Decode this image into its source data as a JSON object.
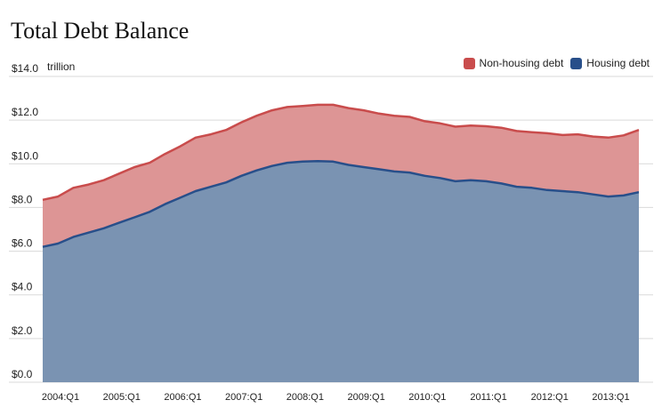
{
  "chart_data": {
    "type": "area",
    "title": "Total Debt Balance",
    "unit_label": "trillion",
    "stacked": true,
    "y_ticks": [
      "$0.0",
      "$2.0",
      "$4.0",
      "$6.0",
      "$8.0",
      "$10.0",
      "$12.0",
      "$14.0"
    ],
    "ylim": [
      0,
      14
    ],
    "x_ticks": [
      "2004:Q1",
      "2005:Q1",
      "2006:Q1",
      "2007:Q1",
      "2008:Q1",
      "2009:Q1",
      "2010:Q1",
      "2011:Q1",
      "2012:Q1",
      "2013:Q1"
    ],
    "x": [
      "2004:Q1",
      "2004:Q2",
      "2004:Q3",
      "2004:Q4",
      "2005:Q1",
      "2005:Q2",
      "2005:Q3",
      "2005:Q4",
      "2006:Q1",
      "2006:Q2",
      "2006:Q3",
      "2006:Q4",
      "2007:Q1",
      "2007:Q2",
      "2007:Q3",
      "2007:Q4",
      "2008:Q1",
      "2008:Q2",
      "2008:Q3",
      "2008:Q4",
      "2009:Q1",
      "2009:Q2",
      "2009:Q3",
      "2009:Q4",
      "2010:Q1",
      "2010:Q2",
      "2010:Q3",
      "2010:Q4",
      "2011:Q1",
      "2011:Q2",
      "2011:Q3",
      "2011:Q4",
      "2012:Q1",
      "2012:Q2",
      "2012:Q3",
      "2012:Q4",
      "2013:Q1",
      "2013:Q2",
      "2013:Q3",
      "2013:Q4"
    ],
    "series": [
      {
        "name": "Housing debt",
        "color": "#284f8a",
        "fill": "#7a93b2",
        "values": [
          6.2,
          6.35,
          6.65,
          6.85,
          7.05,
          7.3,
          7.55,
          7.8,
          8.15,
          8.45,
          8.75,
          8.95,
          9.15,
          9.45,
          9.7,
          9.9,
          10.05,
          10.1,
          10.12,
          10.1,
          9.95,
          9.85,
          9.75,
          9.65,
          9.6,
          9.45,
          9.35,
          9.2,
          9.25,
          9.2,
          9.1,
          8.95,
          8.9,
          8.8,
          8.75,
          8.7,
          8.6,
          8.5,
          8.55,
          8.7
        ]
      },
      {
        "name": "Non-housing debt",
        "color": "#c94c4c",
        "fill": "#dd9595",
        "total_values": [
          8.35,
          8.5,
          8.9,
          9.05,
          9.25,
          9.55,
          9.85,
          10.05,
          10.45,
          10.8,
          11.2,
          11.35,
          11.55,
          11.9,
          12.2,
          12.45,
          12.6,
          12.65,
          12.7,
          12.7,
          12.55,
          12.45,
          12.3,
          12.2,
          12.15,
          11.95,
          11.85,
          11.7,
          11.75,
          11.72,
          11.65,
          11.5,
          11.45,
          11.4,
          11.32,
          11.35,
          11.25,
          11.2,
          11.3,
          11.55
        ]
      }
    ],
    "legend": {
      "position": "top-right",
      "items": [
        "Non-housing debt",
        "Housing debt"
      ]
    },
    "grid": true
  }
}
